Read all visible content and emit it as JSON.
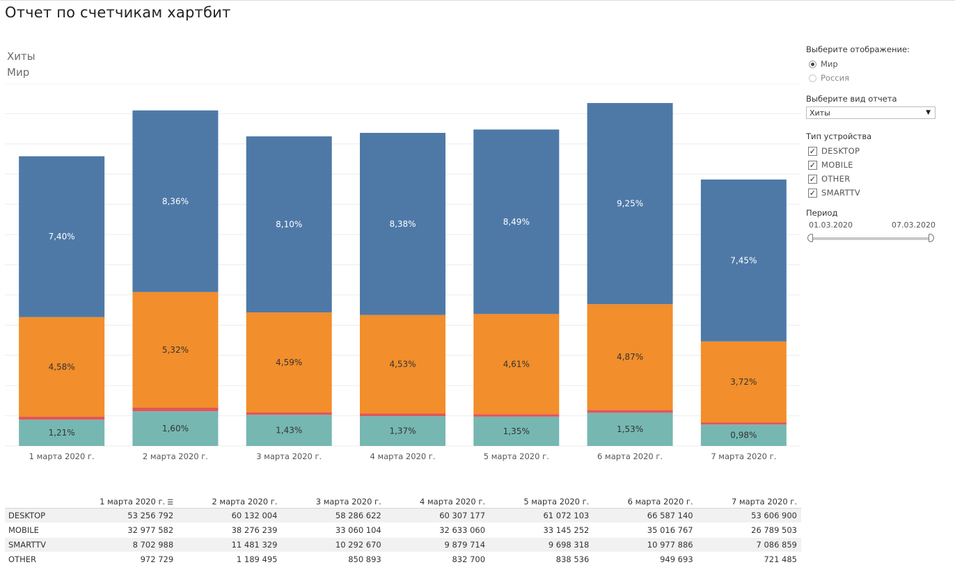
{
  "page": {
    "title": "Отчет по счетчикам хартбит"
  },
  "subtitle": {
    "line1": "Хиты",
    "line2": "Мир"
  },
  "chart_data": {
    "type": "bar",
    "stacked": true,
    "categories": [
      "1 марта 2020 г.",
      "2 марта 2020 г.",
      "3 марта 2020 г.",
      "4 марта 2020 г.",
      "5 марта 2020 г.",
      "6 марта 2020 г.",
      "7 марта 2020 г."
    ],
    "series": [
      {
        "name": "SMARTTV",
        "color": "#76b7b2",
        "values": [
          8702988,
          11481329,
          10292670,
          9879714,
          9698318,
          10977886,
          7086859
        ],
        "labels": [
          "1,21%",
          "1,60%",
          "1,43%",
          "1,37%",
          "1,35%",
          "1,53%",
          "0,98%"
        ],
        "label_color": "#333333"
      },
      {
        "name": "OTHER",
        "color": "#e15759",
        "values": [
          972729,
          1189495,
          850893,
          832700,
          838536,
          949693,
          721485
        ],
        "labels": [],
        "label_color": "#333333"
      },
      {
        "name": "MOBILE",
        "color": "#f28e2b",
        "values": [
          32977582,
          38276239,
          33060104,
          32633060,
          33145252,
          35016767,
          26789503
        ],
        "labels": [
          "4,58%",
          "5,32%",
          "4,59%",
          "4,53%",
          "4,61%",
          "4,87%",
          "3,72%"
        ],
        "label_color": "#333333"
      },
      {
        "name": "DESKTOP",
        "color": "#4e79a7",
        "values": [
          53256792,
          60132004,
          58286622,
          60307177,
          61072103,
          66587140,
          53606900
        ],
        "labels": [
          "7,40%",
          "8,36%",
          "8,10%",
          "8,38%",
          "8,49%",
          "9,25%",
          "7,45%"
        ],
        "label_color": "#ffffff"
      }
    ],
    "ylim": [
      0,
      120000000
    ],
    "grid": true,
    "legend": "none"
  },
  "controls": {
    "display": {
      "label": "Выберите отображение:",
      "options": [
        "Мир",
        "Россия"
      ],
      "selected": "Мир"
    },
    "report": {
      "label": "Выберите вид отчета",
      "value": "Хиты"
    },
    "device": {
      "label": "Тип устройства",
      "items": [
        "DESKTOP",
        "MOBILE",
        "OTHER",
        "SMARTTV"
      ],
      "checked": [
        true,
        true,
        true,
        true
      ]
    },
    "period": {
      "label": "Период",
      "from": "01.03.2020",
      "to": "07.03.2020"
    }
  },
  "table": {
    "columns": [
      "1 марта 2020 г.",
      "2 марта 2020 г.",
      "3 марта 2020 г.",
      "4 марта 2020 г.",
      "5 марта 2020 г.",
      "6 марта 2020 г.",
      "7 марта 2020 г."
    ],
    "rows": [
      {
        "name": "DESKTOP",
        "values": [
          "53 256 792",
          "60 132 004",
          "58 286 622",
          "60 307 177",
          "61 072 103",
          "66 587 140",
          "53 606 900"
        ]
      },
      {
        "name": "MOBILE",
        "values": [
          "32 977 582",
          "38 276 239",
          "33 060 104",
          "32 633 060",
          "33 145 252",
          "35 016 767",
          "26 789 503"
        ]
      },
      {
        "name": "SMARTTV",
        "values": [
          "8 702 988",
          "11 481 329",
          "10 292 670",
          "9 879 714",
          "9 698 318",
          "10 977 886",
          "7 086 859"
        ]
      },
      {
        "name": "OTHER",
        "values": [
          "972 729",
          "1 189 495",
          "850 893",
          "832 700",
          "838 536",
          "949 693",
          "721 485"
        ]
      }
    ]
  }
}
